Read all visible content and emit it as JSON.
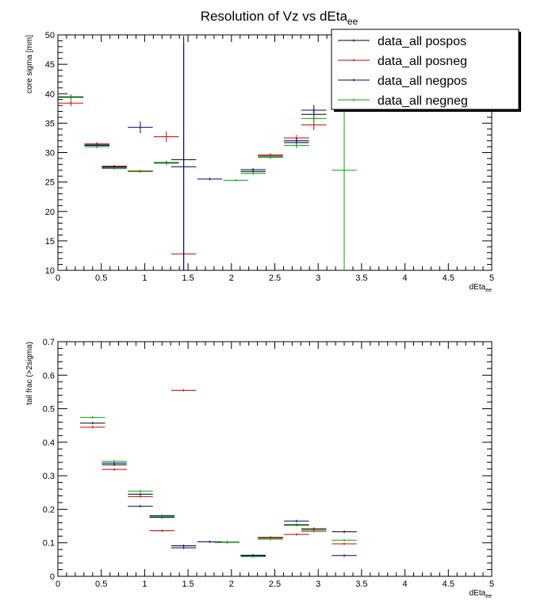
{
  "title": {
    "main": "Resolution of Vz vs  dEta",
    "sub": "ee"
  },
  "colors": {
    "pospos": "#000000",
    "posneg": "#cc0000",
    "negpos": "#000080",
    "negneg": "#00aa00"
  },
  "chart_data": [
    {
      "type": "scatter",
      "ylabel": "core sigma [mm]",
      "xlabel": "dEta",
      "xlabel_sub": "ee",
      "xlim": [
        0,
        5
      ],
      "ylim": [
        10,
        50
      ],
      "x_ticks": [
        "0",
        "0.5",
        "1",
        "1.5",
        "2",
        "2.5",
        "3",
        "3.5",
        "4",
        "4.5",
        "5"
      ],
      "y_ticks": [
        "10",
        "15",
        "20",
        "25",
        "30",
        "35",
        "40",
        "45",
        "50"
      ],
      "legend_position": "top-right",
      "legend": [
        "data_all pospos",
        "data_all posneg",
        "data_all negpos",
        "data_all negneg"
      ],
      "series": [
        {
          "name": "data_all pospos",
          "color": "#000000",
          "points": [
            {
              "x": 0.15,
              "y": 39.4,
              "err": 0.4
            },
            {
              "x": 0.45,
              "y": 31.3,
              "err": 0.3
            },
            {
              "x": 0.65,
              "y": 27.6,
              "err": 0.2
            },
            {
              "x": 0.95,
              "y": 26.9,
              "err": 0.2
            },
            {
              "x": 1.25,
              "y": 28.3,
              "err": 0.3
            },
            {
              "x": 1.45,
              "y": 28.8,
              "err": 21.0
            },
            {
              "x": 2.25,
              "y": 26.8,
              "err": 0.3
            },
            {
              "x": 2.45,
              "y": 29.4,
              "err": 0.3
            },
            {
              "x": 2.75,
              "y": 31.7,
              "err": 0.6
            },
            {
              "x": 2.95,
              "y": 36.5,
              "err": 1.0
            }
          ]
        },
        {
          "name": "data_all posneg",
          "color": "#cc0000",
          "points": [
            {
              "x": 0.15,
              "y": 38.4,
              "err": 0.5
            },
            {
              "x": 0.45,
              "y": 31.5,
              "err": 0.3
            },
            {
              "x": 0.65,
              "y": 27.7,
              "err": 0.2
            },
            {
              "x": 0.95,
              "y": 26.8,
              "err": 0.2
            },
            {
              "x": 1.25,
              "y": 32.7,
              "err": 0.9
            },
            {
              "x": 1.45,
              "y": 12.8,
              "err": 0.0
            },
            {
              "x": 2.45,
              "y": 29.6,
              "err": 0.3
            },
            {
              "x": 2.75,
              "y": 32.5,
              "err": 0.5
            },
            {
              "x": 2.95,
              "y": 34.7,
              "err": 0.9
            }
          ]
        },
        {
          "name": "data_all negpos",
          "color": "#000080",
          "points": [
            {
              "x": 0.45,
              "y": 31.2,
              "err": 0.3
            },
            {
              "x": 0.65,
              "y": 27.5,
              "err": 0.2
            },
            {
              "x": 0.95,
              "y": 34.3,
              "err": 1.0
            },
            {
              "x": 1.45,
              "y": 27.6,
              "err": 21.0
            },
            {
              "x": 1.75,
              "y": 25.5,
              "err": 0.2
            },
            {
              "x": 2.25,
              "y": 27.1,
              "err": 0.3
            },
            {
              "x": 2.75,
              "y": 32.0,
              "err": 0.5
            },
            {
              "x": 2.95,
              "y": 37.2,
              "err": 0.9
            }
          ]
        },
        {
          "name": "data_all negneg",
          "color": "#00aa00",
          "points": [
            {
              "x": 0.15,
              "y": 39.5,
              "err": 0.4
            },
            {
              "x": 0.45,
              "y": 31.0,
              "err": 0.3
            },
            {
              "x": 0.65,
              "y": 27.3,
              "err": 0.2
            },
            {
              "x": 0.95,
              "y": 26.9,
              "err": 0.2
            },
            {
              "x": 1.25,
              "y": 28.2,
              "err": 0.3
            },
            {
              "x": 2.05,
              "y": 25.3,
              "err": 0.2
            },
            {
              "x": 2.25,
              "y": 26.5,
              "err": 0.3
            },
            {
              "x": 2.45,
              "y": 29.2,
              "err": 0.3
            },
            {
              "x": 2.75,
              "y": 31.2,
              "err": 0.5
            },
            {
              "x": 2.95,
              "y": 35.8,
              "err": 0.9
            },
            {
              "x": 3.3,
              "y": 27.0,
              "err": 17.0
            }
          ]
        }
      ]
    },
    {
      "type": "scatter",
      "ylabel": "tail frac (>2sigma)",
      "xlabel": "dEta",
      "xlabel_sub": "ee",
      "xlim": [
        0,
        5
      ],
      "ylim": [
        0,
        0.7
      ],
      "x_ticks": [
        "0",
        "0.5",
        "1",
        "1.5",
        "2",
        "2.5",
        "3",
        "3.5",
        "4",
        "4.5",
        "5"
      ],
      "y_ticks": [
        "0",
        "0.1",
        "0.2",
        "0.3",
        "0.4",
        "0.5",
        "0.6",
        "0.7"
      ],
      "series": [
        {
          "name": "data_all pospos",
          "color": "#000000",
          "points": [
            {
              "x": 0.4,
              "y": 0.457
            },
            {
              "x": 0.65,
              "y": 0.333
            },
            {
              "x": 0.95,
              "y": 0.245
            },
            {
              "x": 1.2,
              "y": 0.176
            },
            {
              "x": 1.45,
              "y": 0.091
            },
            {
              "x": 1.95,
              "y": 0.102
            },
            {
              "x": 2.25,
              "y": 0.063
            },
            {
              "x": 2.45,
              "y": 0.116
            },
            {
              "x": 2.75,
              "y": 0.154
            },
            {
              "x": 2.95,
              "y": 0.142
            },
            {
              "x": 3.3,
              "y": 0.133
            }
          ]
        },
        {
          "name": "data_all posneg",
          "color": "#cc0000",
          "points": [
            {
              "x": 0.4,
              "y": 0.445
            },
            {
              "x": 0.65,
              "y": 0.319
            },
            {
              "x": 0.95,
              "y": 0.238
            },
            {
              "x": 1.2,
              "y": 0.136
            },
            {
              "x": 1.45,
              "y": 0.555
            },
            {
              "x": 2.45,
              "y": 0.114
            },
            {
              "x": 2.75,
              "y": 0.125
            },
            {
              "x": 2.95,
              "y": 0.138
            },
            {
              "x": 3.3,
              "y": 0.097
            }
          ]
        },
        {
          "name": "data_all negpos",
          "color": "#000080",
          "points": [
            {
              "x": 0.65,
              "y": 0.338
            },
            {
              "x": 0.95,
              "y": 0.209
            },
            {
              "x": 1.2,
              "y": 0.181
            },
            {
              "x": 1.45,
              "y": 0.085
            },
            {
              "x": 1.75,
              "y": 0.103
            },
            {
              "x": 2.25,
              "y": 0.061
            },
            {
              "x": 2.75,
              "y": 0.165
            },
            {
              "x": 3.3,
              "y": 0.062
            }
          ]
        },
        {
          "name": "data_all negneg",
          "color": "#00aa00",
          "points": [
            {
              "x": 0.4,
              "y": 0.474
            },
            {
              "x": 0.65,
              "y": 0.343
            },
            {
              "x": 0.95,
              "y": 0.254
            },
            {
              "x": 1.2,
              "y": 0.179
            },
            {
              "x": 1.95,
              "y": 0.101
            },
            {
              "x": 2.25,
              "y": 0.059
            },
            {
              "x": 2.45,
              "y": 0.111
            },
            {
              "x": 2.75,
              "y": 0.152
            },
            {
              "x": 2.95,
              "y": 0.134
            },
            {
              "x": 3.3,
              "y": 0.108
            }
          ]
        }
      ]
    }
  ]
}
